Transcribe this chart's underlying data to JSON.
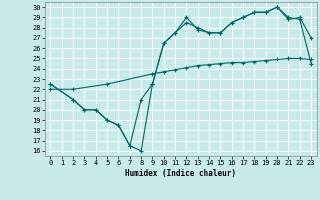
{
  "xlabel": "Humidex (Indice chaleur)",
  "bg_color": "#c8eaea",
  "grid_color": "#ffffff",
  "line_color": "#006666",
  "xlim": [
    -0.5,
    23.5
  ],
  "ylim": [
    15.5,
    30.5
  ],
  "xticks": [
    0,
    1,
    2,
    3,
    4,
    5,
    6,
    7,
    8,
    9,
    10,
    11,
    12,
    13,
    14,
    15,
    16,
    17,
    18,
    19,
    20,
    21,
    22,
    23
  ],
  "yticks": [
    16,
    17,
    18,
    19,
    20,
    21,
    22,
    23,
    24,
    25,
    26,
    27,
    28,
    29,
    30
  ],
  "line1_x": [
    0,
    2,
    5,
    9,
    10,
    11,
    12,
    13,
    14,
    15,
    16,
    17,
    18,
    19,
    20,
    21,
    22,
    23
  ],
  "line1_y": [
    22.0,
    22.0,
    22.5,
    23.5,
    23.7,
    23.9,
    24.1,
    24.3,
    24.4,
    24.5,
    24.6,
    24.6,
    24.7,
    24.8,
    24.9,
    25.0,
    25.0,
    24.9
  ],
  "line2_x": [
    0,
    2,
    3,
    4,
    5,
    6,
    7,
    8,
    9,
    10,
    11,
    12,
    13,
    14,
    15,
    16,
    17,
    18,
    19,
    20,
    21,
    22,
    23
  ],
  "line2_y": [
    22.5,
    21.0,
    20.0,
    20.0,
    19.0,
    18.5,
    16.5,
    16.0,
    22.5,
    26.5,
    27.5,
    28.5,
    28.0,
    27.5,
    27.5,
    28.5,
    29.0,
    29.5,
    29.5,
    30.0,
    28.8,
    29.0,
    27.0
  ],
  "line3_x": [
    0,
    2,
    3,
    4,
    5,
    6,
    7,
    8,
    9,
    10,
    11,
    12,
    13,
    14,
    15,
    16,
    17,
    18,
    19,
    20,
    21,
    22,
    23
  ],
  "line3_y": [
    22.5,
    21.0,
    20.0,
    20.0,
    19.0,
    18.5,
    16.5,
    21.0,
    22.5,
    26.5,
    27.5,
    29.0,
    27.8,
    27.5,
    27.5,
    28.5,
    29.0,
    29.5,
    29.5,
    30.0,
    29.0,
    28.8,
    24.5
  ]
}
